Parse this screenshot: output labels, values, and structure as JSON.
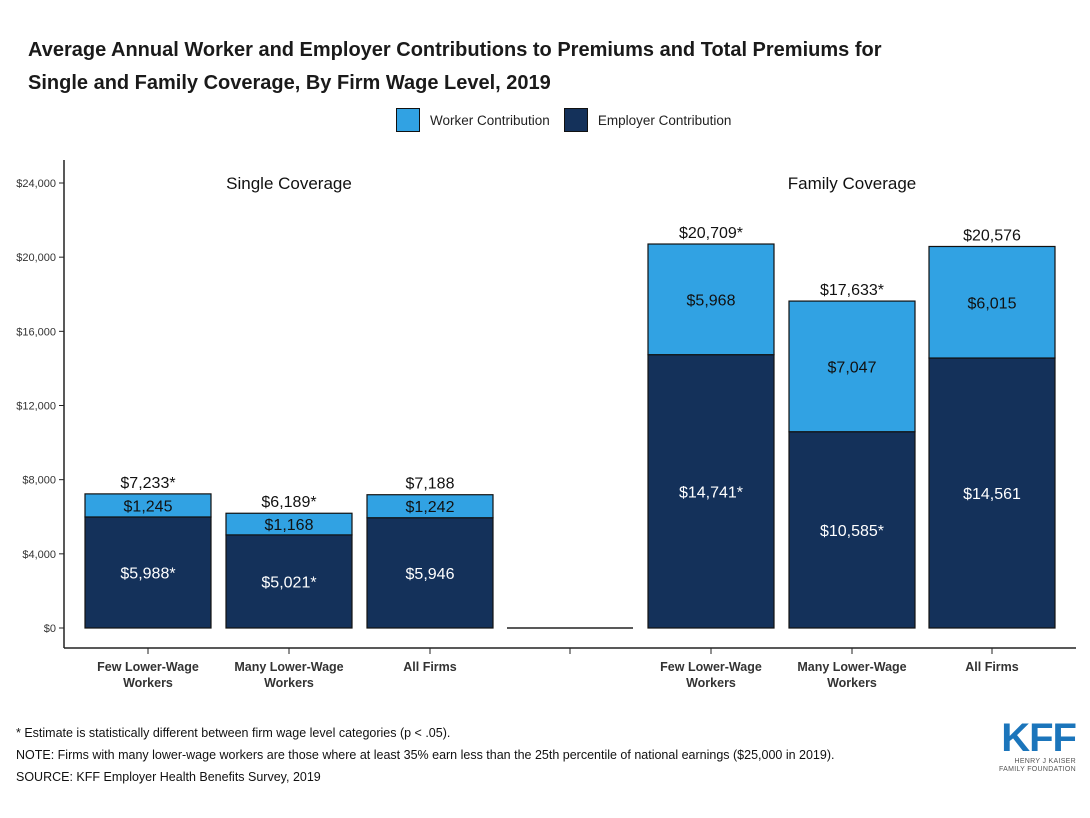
{
  "title_line1": "Average Annual Worker and Employer Contributions to Premiums and Total Premiums for",
  "title_line2": "Single and Family Coverage, By Firm Wage Level, 2019",
  "legend": [
    {
      "label": "Worker Contribution",
      "color": "#31a2e3"
    },
    {
      "label": "Employer Contribution",
      "color": "#14315a"
    }
  ],
  "chart_data": {
    "type": "bar",
    "stacked": true,
    "ylim": [
      0,
      24000
    ],
    "y_ticks": [
      "$0",
      "$4,000",
      "$8,000",
      "$12,000",
      "$16,000",
      "$20,000",
      "$24,000"
    ],
    "y_tick_values": [
      0,
      4000,
      8000,
      12000,
      16000,
      20000,
      24000
    ],
    "grid": false,
    "legend_position": "top",
    "panels": [
      {
        "title": "Single Coverage",
        "categories": [
          {
            "line1": "Few Lower-Wage",
            "line2": "Workers"
          },
          {
            "line1": "Many Lower-Wage",
            "line2": "Workers"
          },
          {
            "line1": "All Firms",
            "line2": ""
          }
        ],
        "series": [
          {
            "name": "Employer Contribution",
            "values": [
              5988,
              5021,
              5946
            ],
            "labels": [
              "$5,988*",
              "$5,021*",
              "$5,946"
            ]
          },
          {
            "name": "Worker Contribution",
            "values": [
              1245,
              1168,
              1242
            ],
            "labels": [
              "$1,245",
              "$1,168",
              "$1,242"
            ]
          }
        ],
        "totals": [
          7233,
          6189,
          7188
        ],
        "total_labels": [
          "$7,233*",
          "$6,189*",
          "$7,188"
        ]
      },
      {
        "title": "Family Coverage",
        "categories": [
          {
            "line1": "Few Lower-Wage",
            "line2": "Workers"
          },
          {
            "line1": "Many Lower-Wage",
            "line2": "Workers"
          },
          {
            "line1": "All Firms",
            "line2": ""
          }
        ],
        "series": [
          {
            "name": "Employer Contribution",
            "values": [
              14741,
              10585,
              14561
            ],
            "labels": [
              "$14,741*",
              "$10,585*",
              "$14,561"
            ]
          },
          {
            "name": "Worker Contribution",
            "values": [
              5968,
              7047,
              6015
            ],
            "labels": [
              "$5,968",
              "$7,047",
              "$6,015"
            ]
          }
        ],
        "totals": [
          20709,
          17633,
          20576
        ],
        "total_labels": [
          "$20,709*",
          "$17,633*",
          "$20,576"
        ]
      }
    ]
  },
  "footnotes": {
    "line1": "* Estimate is statistically different between firm wage level categories (p < .05).",
    "line2": "NOTE: Firms with many lower-wage workers are those where at least 35% earn less than the 25th percentile of national earnings ($25,000 in 2019).",
    "line3": "SOURCE: KFF Employer Health Benefits Survey, 2019"
  },
  "logo": {
    "mark": "KFF",
    "sub1": "HENRY J KAISER",
    "sub2": "FAMILY FOUNDATION"
  }
}
